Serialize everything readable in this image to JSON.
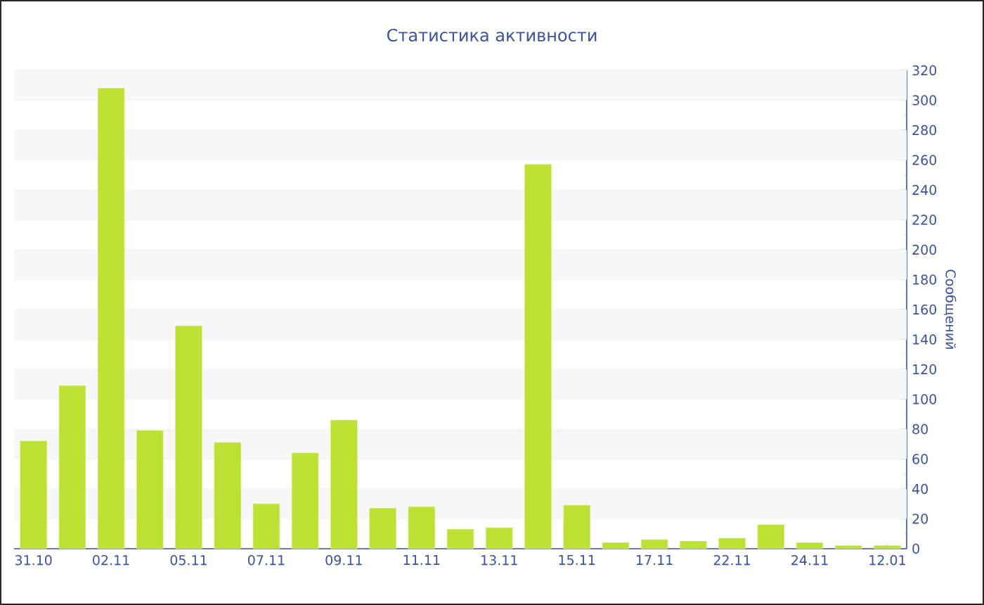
{
  "chart_data": {
    "type": "bar",
    "title": "Статистика активности",
    "ylabel": "Сообщений",
    "categories": [
      "31.10",
      null,
      "02.11",
      null,
      "05.11",
      null,
      "07.11",
      null,
      "09.11",
      null,
      "11.11",
      null,
      "13.11",
      null,
      "15.11",
      null,
      "17.11",
      null,
      "22.11",
      null,
      "24.11",
      null,
      "12.01"
    ],
    "values": [
      72,
      109,
      308,
      79,
      149,
      71,
      30,
      64,
      86,
      27,
      28,
      13,
      14,
      257,
      29,
      4,
      6,
      5,
      7,
      16,
      4,
      2,
      2
    ],
    "color": "#bce133",
    "ylim": [
      0,
      320
    ],
    "yticks": [
      0,
      20,
      40,
      60,
      80,
      100,
      120,
      140,
      160,
      180,
      200,
      220,
      240,
      260,
      280,
      300,
      320
    ],
    "grid": "y"
  }
}
